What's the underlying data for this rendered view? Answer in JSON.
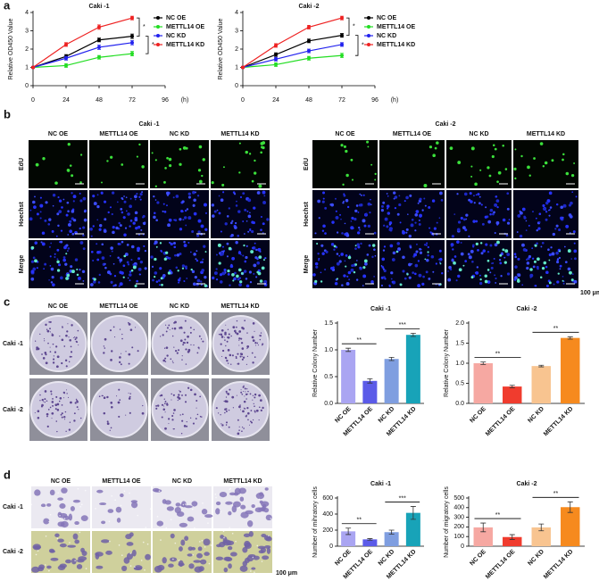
{
  "panel_labels": [
    "a",
    "b",
    "c",
    "d"
  ],
  "chart_data": [
    {
      "type": "line",
      "title": "Caki -1",
      "ylabel": "Relative OD450 Value",
      "xlabel": "(h)",
      "x": [
        0,
        24,
        48,
        72
      ],
      "xlim": [
        0,
        96
      ],
      "xticks": [
        0,
        24,
        48,
        72,
        96
      ],
      "ylim": [
        0,
        4
      ],
      "yticks": [
        0,
        1,
        2,
        3,
        4
      ],
      "series": [
        {
          "name": "NC OE",
          "color": "#000000",
          "values": [
            1,
            1.6,
            2.5,
            2.7
          ],
          "errors": [
            0.05,
            0.1,
            0.1,
            0.12
          ]
        },
        {
          "name": "METTL14 OE",
          "color": "#22dd22",
          "values": [
            1,
            1.1,
            1.55,
            1.75
          ],
          "errors": [
            0.05,
            0.1,
            0.1,
            0.12
          ]
        },
        {
          "name": "NC KD",
          "color": "#2222ee",
          "values": [
            1,
            1.5,
            2.1,
            2.35
          ],
          "errors": [
            0.05,
            0.1,
            0.12,
            0.12
          ]
        },
        {
          "name": "METTL14 KD",
          "color": "#ee2222",
          "values": [
            1,
            2.25,
            3.2,
            3.7
          ],
          "errors": [
            0.05,
            0.1,
            0.12,
            0.1
          ]
        }
      ],
      "annotations": [
        "*",
        "*"
      ]
    },
    {
      "type": "line",
      "title": "Caki -2",
      "ylabel": "Relative OD450 Value",
      "xlabel": "(h)",
      "x": [
        0,
        24,
        48,
        72
      ],
      "xlim": [
        0,
        96
      ],
      "xticks": [
        0,
        24,
        48,
        72,
        96
      ],
      "ylim": [
        0,
        4
      ],
      "yticks": [
        0,
        1,
        2,
        3,
        4
      ],
      "series": [
        {
          "name": "NC OE",
          "color": "#000000",
          "values": [
            1,
            1.7,
            2.45,
            2.75
          ],
          "errors": [
            0.05,
            0.1,
            0.1,
            0.1
          ]
        },
        {
          "name": "METTL14 OE",
          "color": "#22dd22",
          "values": [
            1,
            1.15,
            1.5,
            1.65
          ],
          "errors": [
            0.05,
            0.1,
            0.1,
            0.12
          ]
        },
        {
          "name": "NC KD",
          "color": "#2222ee",
          "values": [
            1,
            1.45,
            1.9,
            2.25
          ],
          "errors": [
            0.05,
            0.1,
            0.1,
            0.1
          ]
        },
        {
          "name": "METTL14 KD",
          "color": "#ee2222",
          "values": [
            1,
            2.2,
            3.2,
            3.7
          ],
          "errors": [
            0.05,
            0.1,
            0.1,
            0.1
          ]
        }
      ],
      "annotations": [
        "*",
        "*"
      ]
    },
    {
      "type": "bar",
      "title": "Caki -1",
      "ylabel": "Relative Colony Number",
      "categories": [
        "NC OE",
        "METTL14 OE",
        "NC KD",
        "METTL14 KD"
      ],
      "values": [
        1.0,
        0.42,
        0.83,
        1.28
      ],
      "errors": [
        0.03,
        0.04,
        0.03,
        0.03
      ],
      "colors": [
        "#aaa5f2",
        "#5b5be8",
        "#7f9ee0",
        "#18a3b8"
      ],
      "ylim": [
        0,
        1.5
      ],
      "yticks": [
        {
          "value": 0,
          "label": "0.0"
        },
        0.5,
        {
          "value": 1,
          "label": "1.0"
        },
        1.5
      ],
      "annotations": [
        "**",
        "***"
      ]
    },
    {
      "type": "bar",
      "title": "Caki -2",
      "ylabel": "Relative Colony Number",
      "categories": [
        "NC OE",
        "METTL14 OE",
        "NC KD",
        "METTL14 KD"
      ],
      "values": [
        1.0,
        0.42,
        0.93,
        1.63
      ],
      "errors": [
        0.03,
        0.03,
        0.02,
        0.03
      ],
      "colors": [
        "#f6a8a2",
        "#f03c2e",
        "#f8c490",
        "#f68a1e"
      ],
      "ylim": [
        0,
        2
      ],
      "yticks": [
        {
          "value": 0,
          "label": "0.0"
        },
        0.5,
        {
          "value": 1,
          "label": "1.0"
        },
        1.5,
        {
          "value": 2,
          "label": "2.0"
        }
      ],
      "annotations": [
        "**",
        "**"
      ]
    },
    {
      "type": "bar",
      "title": "Caki -1",
      "ylabel": "Number of mihratory cells",
      "categories": [
        "NC OE",
        "METTL14 OE",
        "NC KD",
        "METTL14 KD"
      ],
      "values": [
        185,
        85,
        175,
        415
      ],
      "errors": [
        40,
        10,
        25,
        80
      ],
      "colors": [
        "#aaa5f2",
        "#5b5be8",
        "#7f9ee0",
        "#18a3b8"
      ],
      "ylim": [
        0,
        600
      ],
      "yticks": [
        0,
        200,
        400,
        600
      ],
      "annotations": [
        "**",
        "***"
      ]
    },
    {
      "type": "bar",
      "title": "Caki -2",
      "ylabel": "Number of migratory cells",
      "categories": [
        "NC OE",
        "METTL14 OE",
        "NC KD",
        "METTL14 KD"
      ],
      "values": [
        195,
        95,
        195,
        405
      ],
      "errors": [
        45,
        25,
        35,
        55
      ],
      "colors": [
        "#f6a8a2",
        "#f03c2e",
        "#f8c490",
        "#f68a1e"
      ],
      "ylim": [
        0,
        500
      ],
      "yticks": [
        0,
        100,
        200,
        300,
        400,
        500
      ],
      "annotations": [
        "**",
        "**"
      ]
    }
  ],
  "edu": {
    "titles": [
      "Caki -1",
      "Caki -2"
    ],
    "columns": [
      "NC OE",
      "METTL14 OE",
      "NC KD",
      "METTL14 KD"
    ],
    "rows": [
      "EdU",
      "Hoechst",
      "Merge"
    ],
    "scale": "100 μm"
  },
  "colony": {
    "columns": [
      "NC OE",
      "METTL14 OE",
      "NC KD",
      "METTL14 KD"
    ],
    "rows": [
      "Caki -1",
      "Caki -2"
    ]
  },
  "migration": {
    "columns": [
      "NC OE",
      "METTL14 OE",
      "NC KD",
      "METTL14 KD"
    ],
    "rows": [
      "Caki -1",
      "Caki -2"
    ],
    "scale": "100 μm"
  }
}
